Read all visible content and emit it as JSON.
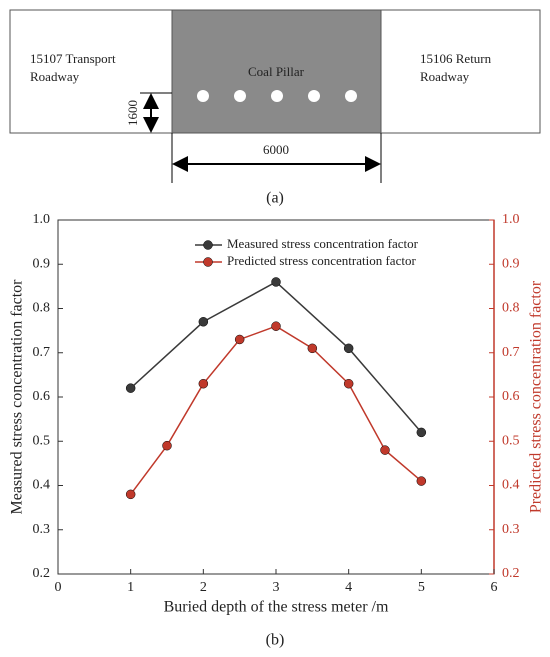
{
  "diagram": {
    "left_roadway": [
      "15107  Transport",
      "Roadway"
    ],
    "pillar": "Coal Pillar",
    "right_roadway": [
      "15106  Return",
      "Roadway"
    ],
    "height_dim": 1600,
    "width_dim": 6000,
    "panel_label": "(a)"
  },
  "chart_data": {
    "type": "line",
    "panel_label": "(b)",
    "xlabel": "Buried depth of the stress meter /m",
    "ylabel": "Measured stress concentration factor",
    "y2label": "Predicted stress concentration factor",
    "xlim": [
      0,
      6
    ],
    "xticks": [
      0,
      1,
      2,
      3,
      4,
      5,
      6
    ],
    "ylim": [
      0.2,
      1.0
    ],
    "yticks": [
      0.2,
      0.3,
      0.4,
      0.5,
      0.6,
      0.7,
      0.8,
      0.9,
      {
        "value": 1,
        "label": "1.0"
      }
    ],
    "y2lim": [
      0.2,
      1.0
    ],
    "y2ticks": [
      0.2,
      0.3,
      0.4,
      0.5,
      0.6,
      0.7,
      0.8,
      0.9,
      {
        "value": 1,
        "label": "1.0"
      }
    ],
    "y2color": "#c0392b",
    "series": [
      {
        "name": "Measured stress concentration factor",
        "color": "#3a3a3a",
        "x": [
          1,
          2,
          3,
          4,
          5
        ],
        "values": [
          0.62,
          0.77,
          0.86,
          0.71,
          0.52
        ]
      },
      {
        "name": "Predicted stress concentration factor",
        "color": "#c0392b",
        "axis": "y2",
        "x": [
          1,
          1.5,
          2,
          2.5,
          3,
          3.5,
          4,
          4.5,
          5
        ],
        "values": [
          0.38,
          0.49,
          0.63,
          0.73,
          0.76,
          0.71,
          0.63,
          0.48,
          0.41
        ]
      }
    ]
  }
}
